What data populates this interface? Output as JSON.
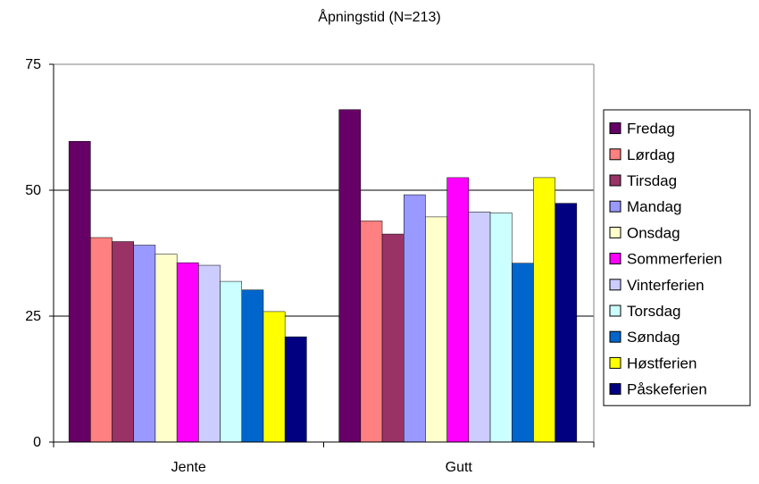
{
  "chart_data": {
    "type": "bar",
    "title": "Åpningstid (N=213)",
    "xlabel": "",
    "ylabel": "",
    "categories": [
      "Jente",
      "Gutt"
    ],
    "ylim": [
      0,
      75
    ],
    "yticks": [
      "0",
      "25",
      "50",
      "75"
    ],
    "grid": true,
    "legend_position": "right",
    "series": [
      {
        "name": "Fredag",
        "color": "#660066",
        "values": [
          59.7,
          66.0
        ]
      },
      {
        "name": "Lørdag",
        "color": "#FF8080",
        "values": [
          40.6,
          43.9
        ]
      },
      {
        "name": "Tirsdag",
        "color": "#993366",
        "values": [
          39.8,
          41.3
        ]
      },
      {
        "name": "Mandag",
        "color": "#9999FF",
        "values": [
          39.1,
          49.1
        ]
      },
      {
        "name": "Onsdag",
        "color": "#FFFFCC",
        "values": [
          37.3,
          44.7
        ]
      },
      {
        "name": "Sommerferien",
        "color": "#FF00FF",
        "values": [
          35.6,
          52.5
        ]
      },
      {
        "name": "Vinterferien",
        "color": "#CCCCFF",
        "values": [
          35.1,
          45.7
        ]
      },
      {
        "name": "Torsdag",
        "color": "#CCFFFF",
        "values": [
          31.9,
          45.5
        ]
      },
      {
        "name": "Søndag",
        "color": "#0066CC",
        "values": [
          30.2,
          35.5
        ]
      },
      {
        "name": "Høstferien",
        "color": "#FFFF00",
        "values": [
          25.9,
          52.5
        ]
      },
      {
        "name": "Påskeferien",
        "color": "#000080",
        "values": [
          20.9,
          47.4
        ]
      }
    ]
  }
}
